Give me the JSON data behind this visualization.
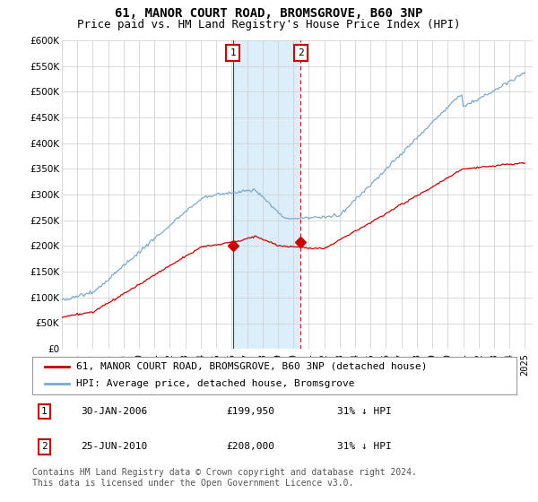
{
  "title": "61, MANOR COURT ROAD, BROMSGROVE, B60 3NP",
  "subtitle": "Price paid vs. HM Land Registry's House Price Index (HPI)",
  "ylim": [
    0,
    600000
  ],
  "yticks": [
    0,
    50000,
    100000,
    150000,
    200000,
    250000,
    300000,
    350000,
    400000,
    450000,
    500000,
    550000,
    600000
  ],
  "hpi_color": "#7aaad0",
  "price_color": "#cc0000",
  "sale1_date": 2006.08,
  "sale1_price": 199950,
  "sale1_label": "1",
  "sale2_date": 2010.48,
  "sale2_price": 208000,
  "sale2_label": "2",
  "shade_color": "#dceef9",
  "vline1_color": "#cc0000",
  "vline2_color": "#cc0000",
  "legend_label1": "61, MANOR COURT ROAD, BROMSGROVE, B60 3NP (detached house)",
  "legend_label2": "HPI: Average price, detached house, Bromsgrove",
  "table_entries": [
    {
      "num": "1",
      "date": "30-JAN-2006",
      "price": "£199,950",
      "note": "31% ↓ HPI"
    },
    {
      "num": "2",
      "date": "25-JUN-2010",
      "price": "£208,000",
      "note": "31% ↓ HPI"
    }
  ],
  "footer": "Contains HM Land Registry data © Crown copyright and database right 2024.\nThis data is licensed under the Open Government Licence v3.0.",
  "bg_color": "#ffffff",
  "grid_color": "#cccccc",
  "title_fontsize": 10,
  "subtitle_fontsize": 9,
  "tick_fontsize": 7.5,
  "legend_fontsize": 8,
  "table_fontsize": 8,
  "footer_fontsize": 7
}
